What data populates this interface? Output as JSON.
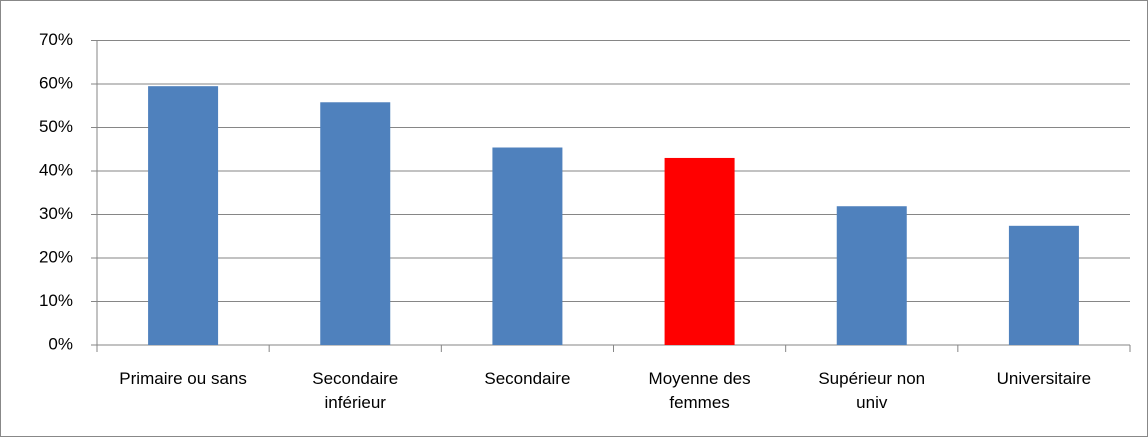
{
  "chart_data": {
    "type": "bar",
    "categories": [
      "Primaire ou sans",
      "Secondaire inférieur",
      "Secondaire",
      "Moyenne des femmes",
      "Supérieur non univ",
      "Universitaire"
    ],
    "values": [
      59.5,
      55.8,
      45.4,
      43.0,
      31.9,
      27.4
    ],
    "colors": [
      "#4f81bd",
      "#4f81bd",
      "#4f81bd",
      "#ff0000",
      "#4f81bd",
      "#4f81bd"
    ],
    "ylim": [
      0,
      70
    ],
    "yticks": [
      {
        "value": 0,
        "label": "0%"
      },
      {
        "value": 10,
        "label": "10%"
      },
      {
        "value": 20,
        "label": "20%"
      },
      {
        "value": 30,
        "label": "30%"
      },
      {
        "value": 40,
        "label": "40%"
      },
      {
        "value": 50,
        "label": "50%"
      },
      {
        "value": 60,
        "label": "60%"
      },
      {
        "value": 70,
        "label": "70%"
      }
    ],
    "grid": true
  }
}
